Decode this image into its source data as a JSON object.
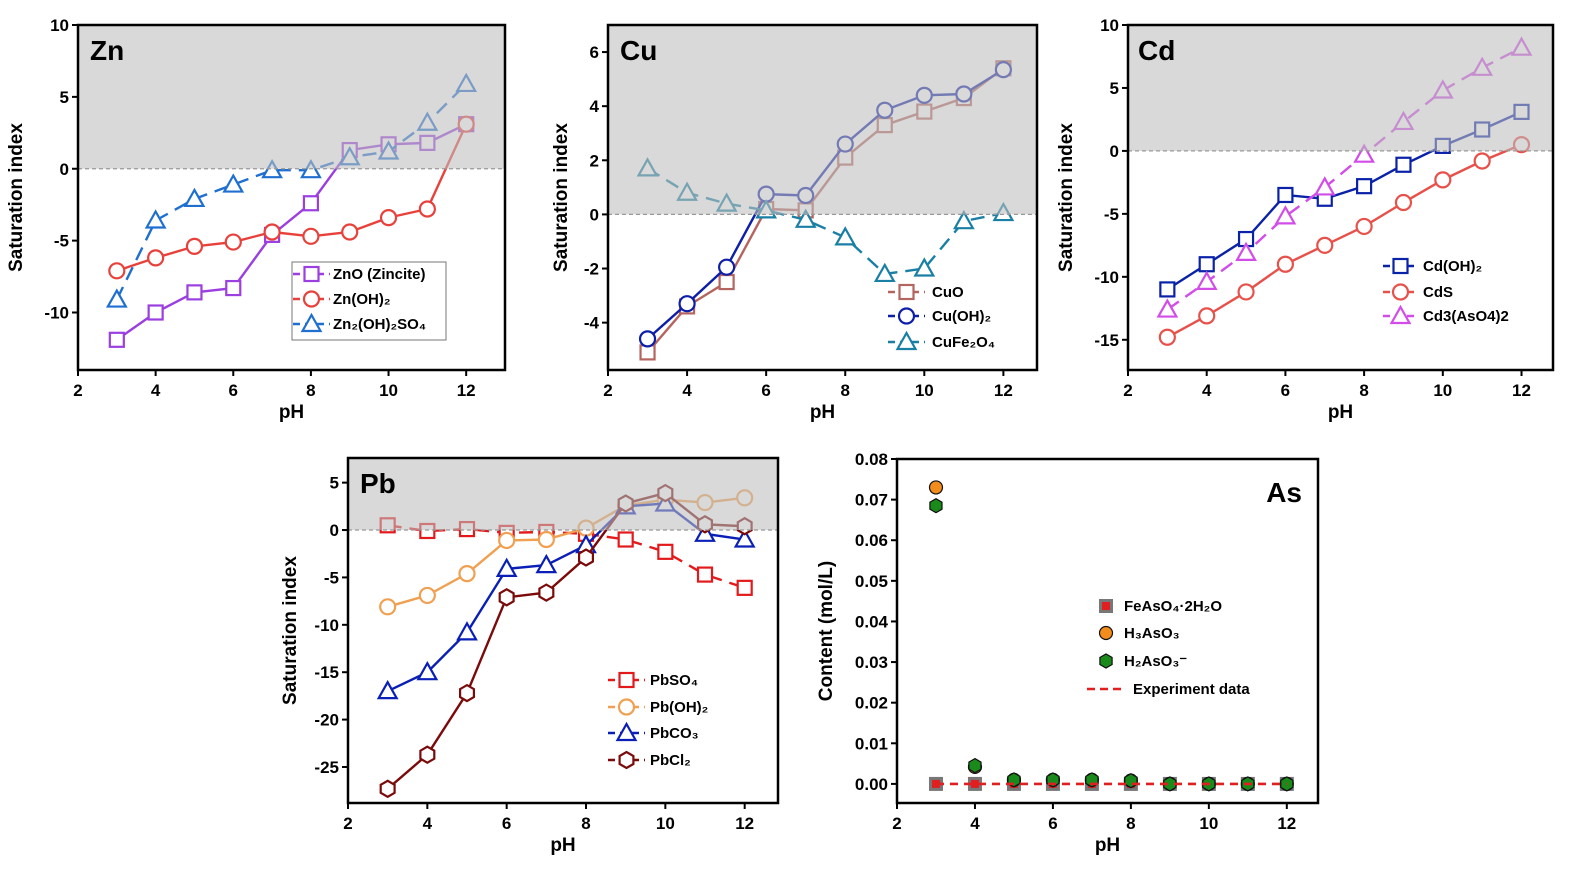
{
  "chart_data": [
    {
      "type": "line",
      "title": "Zn",
      "xlabel": "pH",
      "ylabel": "Saturation index",
      "xlim": [
        2,
        13
      ],
      "ylim": [
        -14,
        10
      ],
      "xticks": [
        "2",
        "4",
        "6",
        "8",
        "10",
        "12"
      ],
      "yticks": [
        "10",
        "5",
        "0",
        "-5",
        "-10"
      ],
      "shaded_region": "saturation index > 0",
      "legend_position": "lower-right",
      "x": [
        3,
        4,
        5,
        6,
        7,
        8,
        9,
        10,
        11,
        12
      ],
      "series": [
        {
          "name": "ZnO (Zincite)",
          "marker": "square",
          "color": "#9b3fe0",
          "dashed": false,
          "values": [
            -11.9,
            -10.0,
            -8.6,
            -8.3,
            -4.6,
            -2.4,
            1.3,
            1.7,
            1.8,
            3.1
          ]
        },
        {
          "name": "Zn(OH)₂",
          "marker": "circle",
          "color": "#e8413c",
          "dashed": false,
          "values": [
            -7.1,
            -6.2,
            -5.4,
            -5.1,
            -4.4,
            -4.7,
            -4.4,
            -3.4,
            -2.8,
            3.1
          ]
        },
        {
          "name": "Zn₂(OH)₂SO₄",
          "marker": "triangle",
          "color": "#1f6fd0",
          "dashed": true,
          "values": [
            -9.1,
            -3.6,
            -2.1,
            -1.1,
            -0.1,
            -0.1,
            0.8,
            1.2,
            3.2,
            5.9
          ]
        }
      ]
    },
    {
      "type": "line",
      "title": "Cu",
      "xlabel": "pH",
      "ylabel": "Saturation index",
      "xlim": [
        2,
        12.85
      ],
      "ylim": [
        -5.75,
        7
      ],
      "xticks": [
        "2",
        "4",
        "6",
        "8",
        "10",
        "12"
      ],
      "yticks": [
        "6",
        "4",
        "2",
        "0",
        "-2",
        "-4"
      ],
      "shaded_region": "saturation index > 0",
      "legend_position": "lower-right",
      "x": [
        3,
        4,
        5,
        6,
        7,
        8,
        9,
        10,
        11,
        12
      ],
      "series": [
        {
          "name": "CuO",
          "marker": "square",
          "color": "#b5655f",
          "dashed": false,
          "values": [
            -5.1,
            -3.4,
            -2.5,
            0.2,
            0.15,
            2.1,
            3.3,
            3.8,
            4.3,
            5.4
          ]
        },
        {
          "name": "Cu(OH)₂",
          "marker": "circle",
          "color": "#0d1ea8",
          "dashed": false,
          "values": [
            -4.6,
            -3.3,
            -1.95,
            0.75,
            0.7,
            2.6,
            3.85,
            4.4,
            4.45,
            5.35
          ]
        },
        {
          "name": "CuFe₂O₄",
          "marker": "triangle",
          "color": "#1a7fa5",
          "dashed": true,
          "values": [
            1.7,
            0.8,
            0.4,
            0.15,
            -0.2,
            -0.85,
            -2.2,
            -2.0,
            -0.25,
            0.05
          ]
        }
      ]
    },
    {
      "type": "line",
      "title": "Cd",
      "xlabel": "pH",
      "ylabel": "Saturation index",
      "xlim": [
        2,
        12.8
      ],
      "ylim": [
        -17.4,
        10
      ],
      "xticks": [
        "2",
        "4",
        "6",
        "8",
        "10",
        "12"
      ],
      "yticks": [
        "10",
        "5",
        "0",
        "-5",
        "-10",
        "-15"
      ],
      "shaded_region": "saturation index > 0",
      "legend_position": "lower-right",
      "x": [
        3,
        4,
        5,
        6,
        7,
        8,
        9,
        10,
        11,
        12
      ],
      "series": [
        {
          "name": "Cd(OH)₂",
          "marker": "square",
          "color": "#0a22a8",
          "dashed": false,
          "values": [
            -11.0,
            -9.0,
            -7.0,
            -3.5,
            -3.8,
            -2.8,
            -1.1,
            0.4,
            1.7,
            3.1
          ]
        },
        {
          "name": "CdS",
          "marker": "circle",
          "color": "#e8504a",
          "dashed": false,
          "values": [
            -14.8,
            -13.1,
            -11.2,
            -9.0,
            -7.5,
            -6.0,
            -4.1,
            -2.3,
            -0.8,
            0.5
          ]
        },
        {
          "name": "Cd3(AsO4)2",
          "marker": "triangle",
          "color": "#d24de8",
          "dashed": true,
          "values": [
            -12.6,
            -10.4,
            -8.1,
            -5.2,
            -2.9,
            -0.3,
            2.3,
            4.8,
            6.6,
            8.2
          ]
        }
      ]
    },
    {
      "type": "line",
      "title": "Pb",
      "xlabel": "pH",
      "ylabel": "Saturation index",
      "xlim": [
        2,
        12.84
      ],
      "ylim": [
        -28.8,
        7.6
      ],
      "xticks": [
        "2",
        "4",
        "6",
        "8",
        "10",
        "12"
      ],
      "yticks": [
        "5",
        "0",
        "-5",
        "-10",
        "-15",
        "-20",
        "-25"
      ],
      "shaded_region": "saturation index > 0",
      "legend_position": "lower-right",
      "x": [
        3,
        4,
        5,
        6,
        7,
        8,
        9,
        10,
        11,
        12
      ],
      "series": [
        {
          "name": "PbSO₄",
          "marker": "square",
          "color": "#e31a1c",
          "dashed": true,
          "values": [
            0.5,
            -0.1,
            0.1,
            -0.3,
            -0.2,
            -0.4,
            -1.0,
            -2.3,
            -4.7,
            -6.1
          ]
        },
        {
          "name": "Pb(OH)₂",
          "marker": "circle",
          "color": "#f0a050",
          "dashed": false,
          "values": [
            -8.1,
            -6.9,
            -4.6,
            -1.1,
            -1.0,
            0.2,
            2.6,
            3.2,
            2.9,
            3.4
          ]
        },
        {
          "name": "PbCO₃",
          "marker": "triangle",
          "color": "#0a1fb5",
          "dashed": false,
          "values": [
            -17.0,
            -15.0,
            -10.8,
            -4.1,
            -3.7,
            -1.6,
            2.5,
            2.8,
            -0.4,
            -1.0
          ]
        },
        {
          "name": "PbCl₂",
          "marker": "hexagon",
          "color": "#7b0a0a",
          "dashed": false,
          "values": [
            -27.3,
            -23.7,
            -17.2,
            -7.1,
            -6.6,
            -2.9,
            2.8,
            3.9,
            0.6,
            0.4
          ]
        }
      ]
    },
    {
      "type": "scatter",
      "title": "As",
      "xlabel": "pH",
      "ylabel": "Content (mol/L)",
      "xlim": [
        2,
        12.8
      ],
      "ylim": [
        -0.0047,
        0.08
      ],
      "xticks": [
        "2",
        "4",
        "6",
        "8",
        "10",
        "12"
      ],
      "yticks": [
        "0.08",
        "0.07",
        "0.06",
        "0.05",
        "0.04",
        "0.03",
        "0.02",
        "0.01",
        "0.00"
      ],
      "legend_position": "center-right",
      "x": [
        3,
        4,
        5,
        6,
        7,
        8,
        9,
        10,
        11,
        12
      ],
      "series": [
        {
          "name": "FeAsO₄·2H₂O",
          "marker": "square-filled",
          "color": "#e02020",
          "values": [
            0,
            0,
            0,
            0,
            0,
            0,
            0,
            0,
            0,
            0
          ]
        },
        {
          "name": "H₃AsO₃",
          "marker": "circle-filled",
          "color": "#f28c1c",
          "values": [
            0.073,
            0.0042,
            0.001,
            0.001,
            0.001,
            0.0008,
            0,
            0,
            0,
            0
          ]
        },
        {
          "name": "H₂AsO₃⁻",
          "marker": "hexagon-filled",
          "color": "#1a8a1a",
          "values": [
            0.0685,
            0.0045,
            0.001,
            0.001,
            0.001,
            0.0008,
            0,
            0,
            0,
            0
          ]
        },
        {
          "name": "Experiment data",
          "marker": "dashed-line",
          "color": "#e02020",
          "values": [
            0,
            0,
            0,
            0,
            0,
            0,
            0,
            0,
            0,
            0
          ]
        }
      ]
    }
  ]
}
